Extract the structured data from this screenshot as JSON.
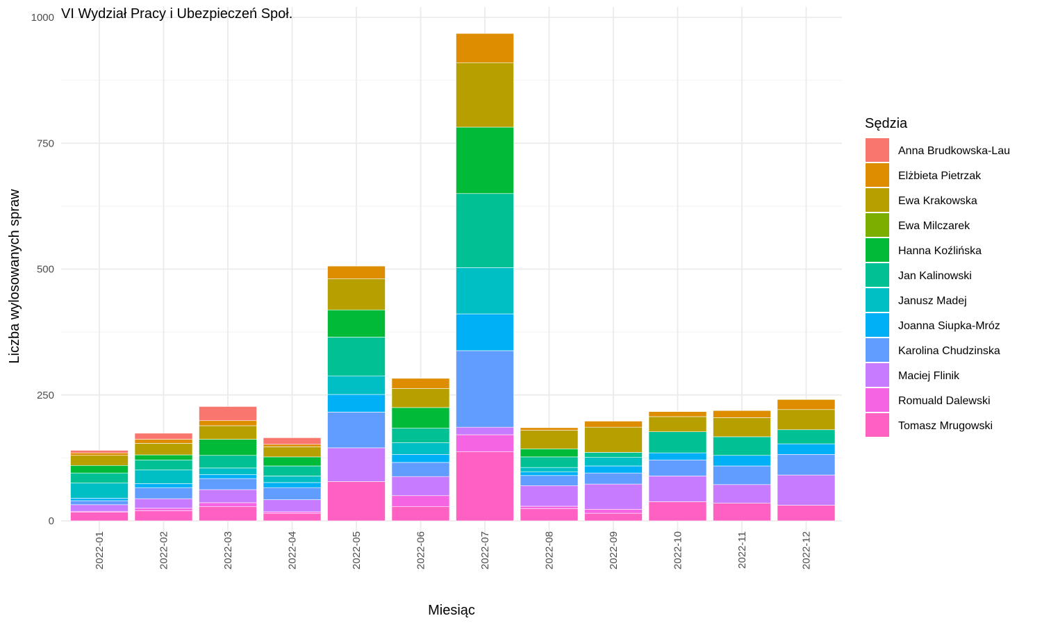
{
  "chart_data": {
    "type": "bar",
    "stacked": true,
    "title": "VI Wydział Pracy i Ubezpieczeń Społ.",
    "xlabel": "Miesiąc",
    "ylabel": "Liczba wylosowanych spraw",
    "ylim": [
      0,
      1000
    ],
    "y_ticks": [
      0,
      250,
      500,
      750,
      1000
    ],
    "grid": true,
    "legend_title": "Sędzia",
    "legend_position": "right",
    "categories": [
      "2022-01",
      "2022-02",
      "2022-03",
      "2022-04",
      "2022-05",
      "2022-06",
      "2022-07",
      "2022-08",
      "2022-09",
      "2022-10",
      "2022-11",
      "2022-12"
    ],
    "series": [
      {
        "name": "Tomasz Mrugowski",
        "color": "#FF61C3",
        "values": [
          17,
          20,
          28,
          15,
          78,
          28,
          137,
          24,
          15,
          38,
          35,
          31
        ]
      },
      {
        "name": "Romuald Dalewski",
        "color": "#F564E3",
        "values": [
          2,
          5,
          8,
          3,
          0,
          22,
          34,
          5,
          8,
          0,
          0,
          0
        ]
      },
      {
        "name": "Maciej Flinik",
        "color": "#C77CFF",
        "values": [
          13,
          19,
          26,
          24,
          67,
          38,
          15,
          41,
          50,
          51,
          37,
          60
        ]
      },
      {
        "name": "Karolina Chudzinska",
        "color": "#619CFF",
        "values": [
          8,
          22,
          22,
          24,
          71,
          28,
          152,
          20,
          22,
          32,
          37,
          41
        ]
      },
      {
        "name": "Joanna Siupka-Mróz",
        "color": "#00B0F6",
        "values": [
          5,
          8,
          8,
          10,
          35,
          16,
          73,
          7,
          14,
          14,
          21,
          21
        ]
      },
      {
        "name": "Janusz Madej",
        "color": "#00BFC4",
        "values": [
          30,
          27,
          13,
          13,
          37,
          23,
          92,
          9,
          17,
          0,
          0,
          0
        ]
      },
      {
        "name": "Jan Kalinowski",
        "color": "#00C094",
        "values": [
          20,
          20,
          25,
          20,
          77,
          29,
          147,
          21,
          10,
          42,
          37,
          28
        ]
      },
      {
        "name": "Hanna Koźlińska",
        "color": "#00BA38",
        "values": [
          15,
          10,
          32,
          18,
          54,
          41,
          132,
          16,
          0,
          0,
          0,
          0
        ]
      },
      {
        "name": "Ewa Milczarek",
        "color": "#7CAE00",
        "values": [
          0,
          0,
          0,
          0,
          0,
          0,
          0,
          0,
          0,
          0,
          0,
          0
        ]
      },
      {
        "name": "Ewa Krakowska",
        "color": "#B79F00",
        "values": [
          20,
          23,
          27,
          20,
          62,
          38,
          128,
          37,
          50,
          30,
          38,
          40
        ]
      },
      {
        "name": "Elżbieta Pietrzak",
        "color": "#DE8C00",
        "values": [
          5,
          8,
          10,
          5,
          25,
          20,
          58,
          5,
          12,
          10,
          14,
          20
        ]
      },
      {
        "name": "Anna Brudkowska-Lau",
        "color": "#F8766D",
        "values": [
          5,
          12,
          28,
          13,
          0,
          0,
          0,
          0,
          0,
          0,
          0,
          0
        ]
      }
    ],
    "legend_order": [
      "Anna Brudkowska-Lau",
      "Elżbieta Pietrzak",
      "Ewa Krakowska",
      "Ewa Milczarek",
      "Hanna Koźlińska",
      "Jan Kalinowski",
      "Janusz Madej",
      "Joanna Siupka-Mróz",
      "Karolina Chudzinska",
      "Maciej Flinik",
      "Romuald Dalewski",
      "Tomasz Mrugowski"
    ]
  }
}
